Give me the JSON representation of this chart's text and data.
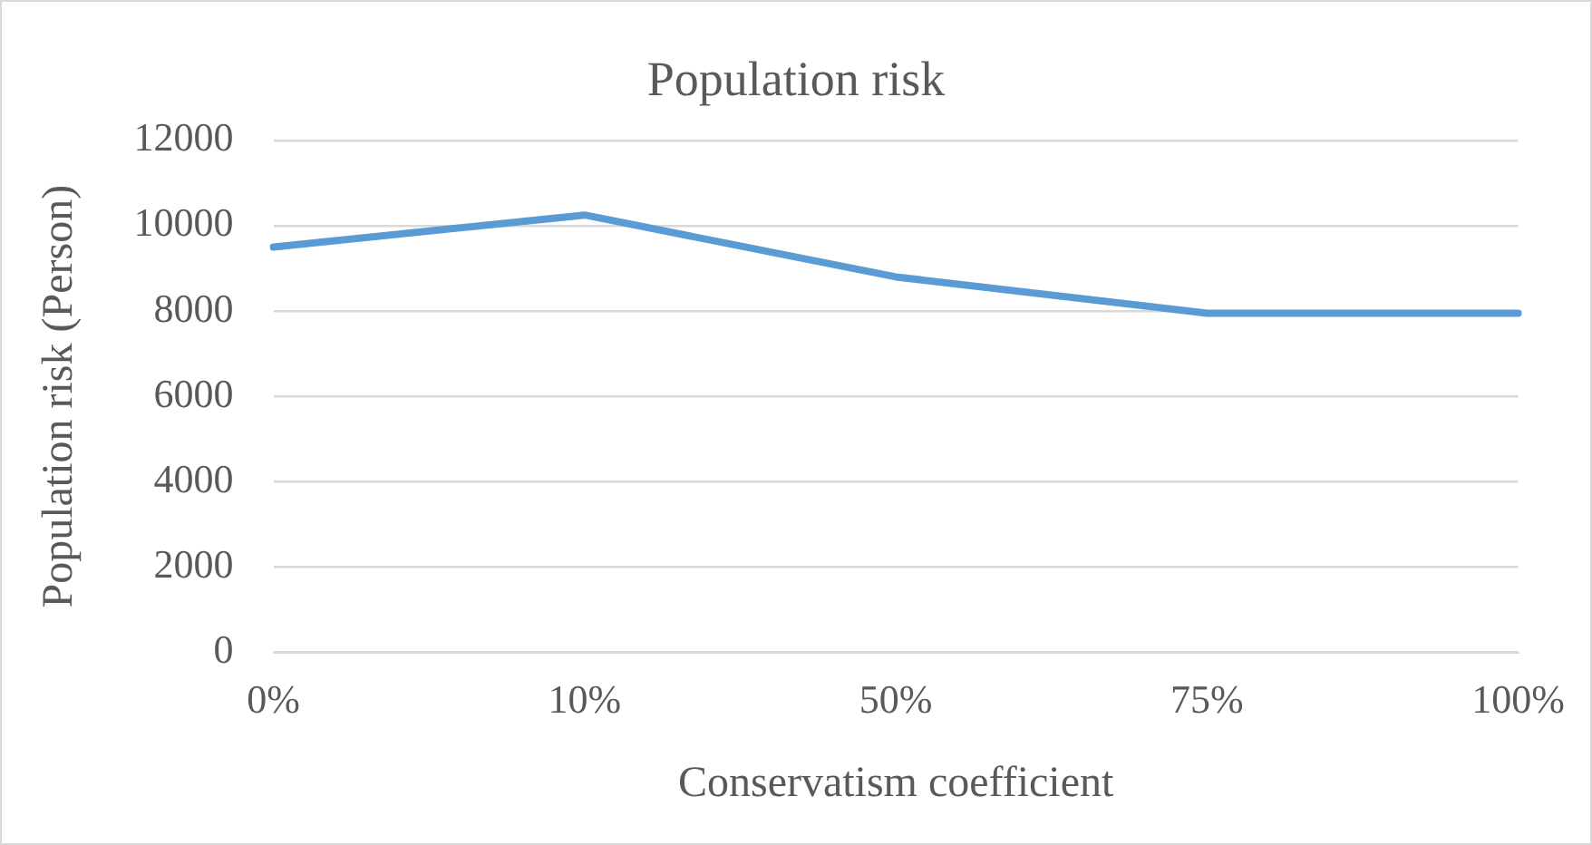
{
  "chart_data": {
    "type": "line",
    "title": "Population risk",
    "xlabel": "Conservatism coefficient",
    "ylabel": "Population risk (Person)",
    "categories": [
      "0%",
      "10%",
      "50%",
      "75%",
      "100%"
    ],
    "series": [
      {
        "color": "#5b9bd5",
        "values": [
          9500,
          10250,
          8800,
          7950,
          7950
        ]
      }
    ],
    "ylim": [
      0,
      12000
    ],
    "yticks": [
      0,
      2000,
      4000,
      6000,
      8000,
      10000,
      12000
    ],
    "grid": "y",
    "legend": false,
    "marker": "none"
  }
}
